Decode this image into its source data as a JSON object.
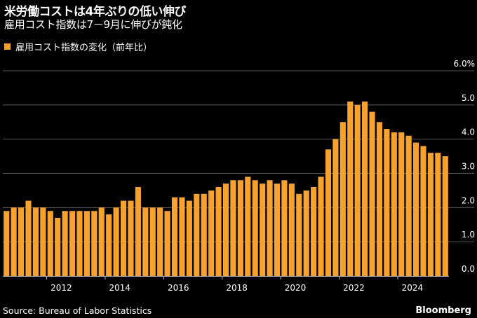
{
  "title": "米労働コストは4年ぶりの低い伸び",
  "subtitle": "雇用コスト指数は7－9月に伸びが鈍化",
  "source": "Source: Bureau of Labor Statistics",
  "brand": "Bloomberg",
  "colors": {
    "bar": "#f7a22e",
    "background": "#000000",
    "grid": "#5a5a5a",
    "text": "#ffffff"
  },
  "chart_data": {
    "type": "bar",
    "series": [
      {
        "name": "雇用コスト指数の変化（前年比）",
        "x": [
          "2010Q3",
          "2010Q4",
          "2011Q1",
          "2011Q2",
          "2011Q3",
          "2011Q4",
          "2012Q1",
          "2012Q2",
          "2012Q3",
          "2012Q4",
          "2013Q1",
          "2013Q2",
          "2013Q3",
          "2013Q4",
          "2014Q1",
          "2014Q2",
          "2014Q3",
          "2014Q4",
          "2015Q1",
          "2015Q2",
          "2015Q3",
          "2015Q4",
          "2016Q1",
          "2016Q2",
          "2016Q3",
          "2016Q4",
          "2017Q1",
          "2017Q2",
          "2017Q3",
          "2017Q4",
          "2018Q1",
          "2018Q2",
          "2018Q3",
          "2018Q4",
          "2019Q1",
          "2019Q2",
          "2019Q3",
          "2019Q4",
          "2020Q1",
          "2020Q2",
          "2020Q3",
          "2020Q4",
          "2021Q1",
          "2021Q2",
          "2021Q3",
          "2021Q4",
          "2022Q1",
          "2022Q2",
          "2022Q3",
          "2022Q4",
          "2023Q1",
          "2023Q2",
          "2023Q3",
          "2023Q4",
          "2024Q1",
          "2024Q2",
          "2024Q3",
          "2024Q4",
          "2025Q1",
          "2025Q2",
          "2025Q3"
        ],
        "values": [
          1.9,
          2.0,
          2.0,
          2.2,
          2.0,
          2.0,
          1.9,
          1.7,
          1.9,
          1.9,
          1.9,
          1.9,
          1.9,
          2.0,
          1.8,
          2.0,
          2.2,
          2.2,
          2.6,
          2.0,
          2.0,
          2.0,
          1.9,
          2.3,
          2.3,
          2.2,
          2.4,
          2.4,
          2.5,
          2.6,
          2.7,
          2.8,
          2.8,
          2.9,
          2.8,
          2.7,
          2.8,
          2.7,
          2.8,
          2.7,
          2.4,
          2.5,
          2.6,
          2.9,
          3.7,
          4.0,
          4.5,
          5.1,
          5.0,
          5.1,
          4.8,
          4.5,
          4.3,
          4.2,
          4.2,
          4.1,
          3.9,
          3.8,
          3.6,
          3.6,
          3.5
        ]
      }
    ],
    "xtick_labels": [
      "2012",
      "2014",
      "2016",
      "2018",
      "2020",
      "2022",
      "2024"
    ],
    "ytick_labels": [
      "0.0",
      "1.0",
      "2.0",
      "3.0",
      "4.0",
      "5.0",
      "6.0%"
    ],
    "ylim": [
      0,
      6
    ],
    "grid": true,
    "legend_position": "top-left"
  }
}
